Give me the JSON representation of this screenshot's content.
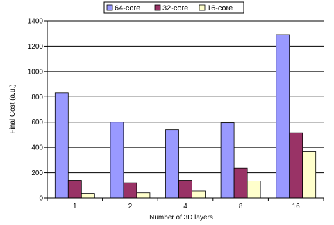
{
  "chart_data": {
    "type": "bar",
    "title": "",
    "xlabel": "Number of 3D layers",
    "ylabel": "Final Cost (a.u.)",
    "categories": [
      "1",
      "2",
      "4",
      "8",
      "16"
    ],
    "ylim": [
      0,
      1400
    ],
    "yticks": [
      0,
      200,
      400,
      600,
      800,
      1000,
      1200,
      1400
    ],
    "grid": true,
    "legend_position": "top",
    "series": [
      {
        "name": "64-core",
        "color": "#9999ff",
        "values": [
          830,
          600,
          540,
          595,
          1290
        ]
      },
      {
        "name": "32-core",
        "color": "#993366",
        "values": [
          140,
          120,
          140,
          235,
          515
        ]
      },
      {
        "name": "16-core",
        "color": "#ffffcc",
        "values": [
          35,
          40,
          55,
          135,
          365
        ]
      }
    ]
  }
}
